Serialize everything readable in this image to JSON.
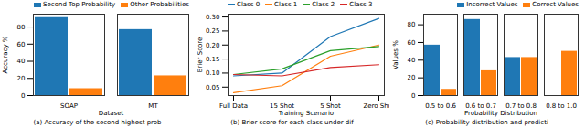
{
  "chart_data": [
    {
      "type": "bar",
      "caption": "(a) Accuracy of the second highest prob",
      "x_label": "Dataset",
      "y_label": "Accuracy %",
      "categories": [
        "SOAP",
        "MT"
      ],
      "series": [
        {
          "name": "Second Top Probability",
          "color": "#1f77b4",
          "values": [
            91,
            77
          ]
        },
        {
          "name": "Other Probabilities",
          "color": "#ff7f0e",
          "values": [
            8,
            23
          ]
        }
      ],
      "ylim": [
        0,
        95
      ],
      "yticks": [
        0,
        20,
        40,
        60,
        80
      ],
      "grid": false,
      "legend": "top-right"
    },
    {
      "type": "line",
      "caption": "(b) Brier score for each class under dif",
      "x_label": "Training Scenario",
      "y_label": "Brier Score",
      "categories": [
        "Full Data",
        "15 Shot",
        "5 Shot",
        "Zero Shot"
      ],
      "series": [
        {
          "name": "Class 0",
          "color": "#1f77b4",
          "values": [
            0.09,
            0.1,
            0.23,
            0.295
          ]
        },
        {
          "name": "Class 1",
          "color": "#ff7f0e",
          "values": [
            0.03,
            0.055,
            0.16,
            0.2
          ]
        },
        {
          "name": "Class 2",
          "color": "#2ca02c",
          "values": [
            0.095,
            0.115,
            0.18,
            0.195
          ]
        },
        {
          "name": "Class 3",
          "color": "#d62728",
          "values": [
            0.095,
            0.09,
            0.12,
            0.13
          ]
        }
      ],
      "ylim": [
        0.02,
        0.31
      ],
      "yticks": [
        0.05,
        {
          "value": 0.1,
          "label": "0.10"
        },
        0.15,
        {
          "value": 0.2,
          "label": "0.20"
        },
        0.25,
        {
          "value": 0.3,
          "label": "0.30"
        }
      ],
      "grid": false,
      "legend": "top-left"
    },
    {
      "type": "bar",
      "caption": "(c) Probability distribution and predicti",
      "x_label": "Probability Distribution",
      "y_label": "Values %",
      "categories": [
        "0.5 to 0.6",
        "0.6 to 0.7",
        "0.7 to 0.8",
        "0.8 to 1.0"
      ],
      "series": [
        {
          "name": "Incorrect Values",
          "color": "#1f77b4",
          "values": [
            57,
            86,
            43,
            0
          ]
        },
        {
          "name": "Correct Values",
          "color": "#ff7f0e",
          "values": [
            7,
            28,
            43,
            50
          ]
        }
      ],
      "ylim": [
        0,
        92
      ],
      "yticks": [
        0,
        20,
        40,
        60,
        80
      ],
      "grid": false,
      "legend": "top-right"
    }
  ]
}
